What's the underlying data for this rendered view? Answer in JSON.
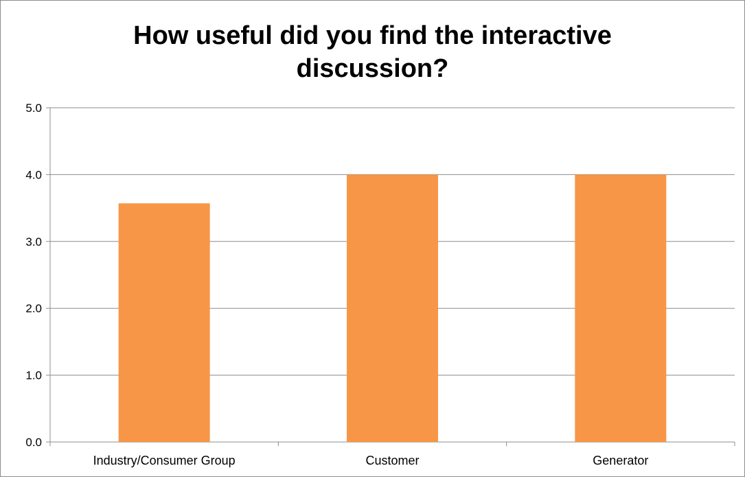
{
  "chart_data": {
    "type": "bar",
    "title": "How useful did you find the interactive\ndiscussion?",
    "categories": [
      "Industry/Consumer Group",
      "Customer",
      "Generator"
    ],
    "values": [
      3.57,
      4.0,
      4.0
    ],
    "ylim": [
      0,
      5
    ],
    "yticks": [
      "0.0",
      "1.0",
      "2.0",
      "3.0",
      "4.0",
      "5.0"
    ],
    "grid": true,
    "legend": "none",
    "bar_color": "#F79646"
  }
}
